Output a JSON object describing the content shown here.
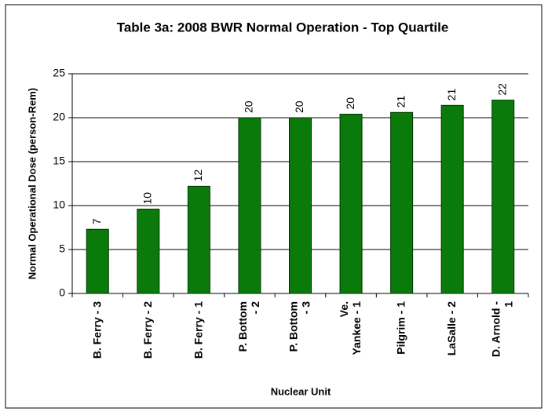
{
  "chart_data": {
    "type": "bar",
    "title": "Table 3a: 2008 BWR Normal Operation - Top Quartile",
    "x_label": "Nuclear Unit",
    "y_label": "Normal Operational Dose (person-Rem)",
    "categories": [
      "B. Ferry - 3",
      "B. Ferry - 2",
      "B. Ferry - 1",
      "P. Bottom\n- 2",
      "P. Bottom\n- 3",
      "Ve.\nYankee - 1",
      "Pilgrim - 1",
      "LaSalle - 2",
      "D. Arnold -\n1"
    ],
    "values": [
      7.3,
      9.6,
      12.2,
      20.0,
      20.0,
      20.4,
      20.6,
      21.4,
      22.0
    ],
    "value_labels": [
      "7",
      "10",
      "12",
      "20",
      "20",
      "20",
      "21",
      "21",
      "22"
    ],
    "color": "#0a7a0a",
    "ylim": [
      0,
      25
    ],
    "yticks": [
      0,
      5,
      10,
      15,
      20,
      25
    ],
    "grid": true
  }
}
